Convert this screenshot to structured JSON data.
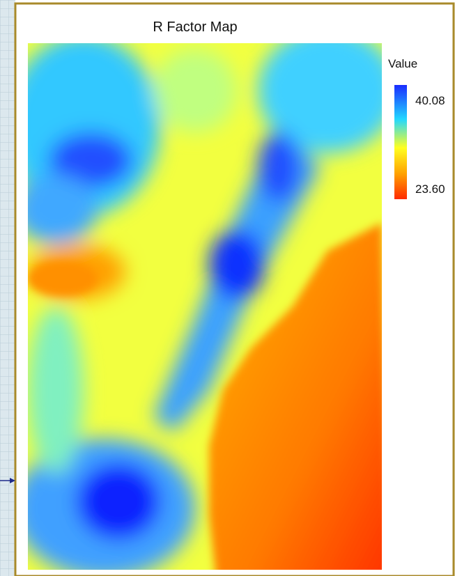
{
  "title": "R Factor Map",
  "legend": {
    "title": "Value",
    "max_label": "40.08",
    "min_label": "23.60"
  }
}
